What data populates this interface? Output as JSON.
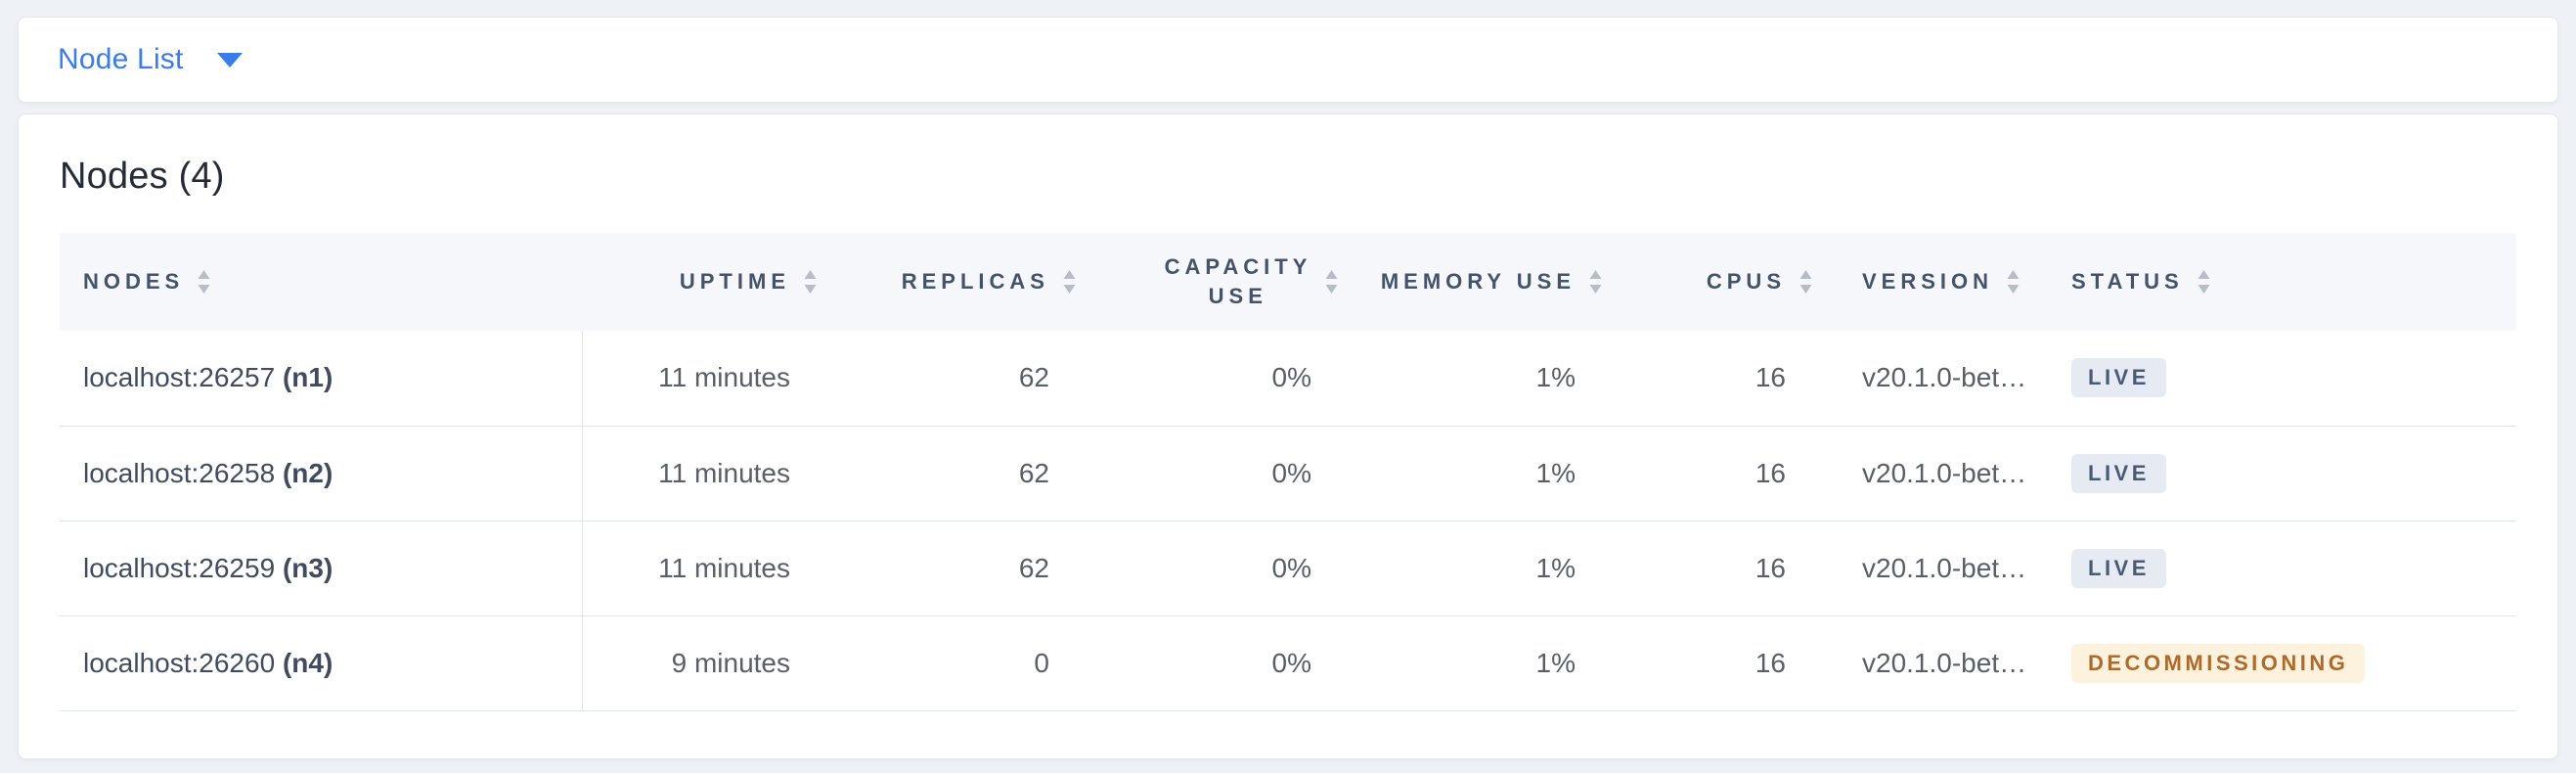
{
  "toolbar": {
    "view_selector_label": "Node List"
  },
  "main": {
    "title": "Nodes (4)",
    "table": {
      "columns": [
        {
          "label": "NODES"
        },
        {
          "label": "UPTIME"
        },
        {
          "label": "REPLICAS"
        },
        {
          "label": "CAPACITY USE"
        },
        {
          "label": "MEMORY USE"
        },
        {
          "label": "CPUS"
        },
        {
          "label": "VERSION"
        },
        {
          "label": "STATUS"
        }
      ],
      "rows": [
        {
          "node": "localhost:26257",
          "node_id": "(n1)",
          "uptime": "11 minutes",
          "replicas": "62",
          "capacity_use": "0%",
          "memory_use": "1%",
          "cpus": "16",
          "version": "v20.1.0-bet…",
          "status": "LIVE",
          "status_type": "live"
        },
        {
          "node": "localhost:26258",
          "node_id": "(n2)",
          "uptime": "11 minutes",
          "replicas": "62",
          "capacity_use": "0%",
          "memory_use": "1%",
          "cpus": "16",
          "version": "v20.1.0-bet…",
          "status": "LIVE",
          "status_type": "live"
        },
        {
          "node": "localhost:26259",
          "node_id": "(n3)",
          "uptime": "11 minutes",
          "replicas": "62",
          "capacity_use": "0%",
          "memory_use": "1%",
          "cpus": "16",
          "version": "v20.1.0-bet…",
          "status": "LIVE",
          "status_type": "live"
        },
        {
          "node": "localhost:26260",
          "node_id": "(n4)",
          "uptime": "9 minutes",
          "replicas": "0",
          "capacity_use": "0%",
          "memory_use": "1%",
          "cpus": "16",
          "version": "v20.1.0-bet…",
          "status": "DECOMMISSIONING",
          "status_type": "decommissioning"
        }
      ]
    }
  },
  "colors": {
    "accent_blue": "#3a7ce8",
    "live_badge_bg": "#e6eaf3",
    "live_badge_text": "#4a5a75",
    "decommissioning_badge_bg": "#fcf2dd",
    "decommissioning_badge_text": "#ad6a2b",
    "header_bg": "#f5f7fa",
    "page_bg": "#eef1f6"
  }
}
